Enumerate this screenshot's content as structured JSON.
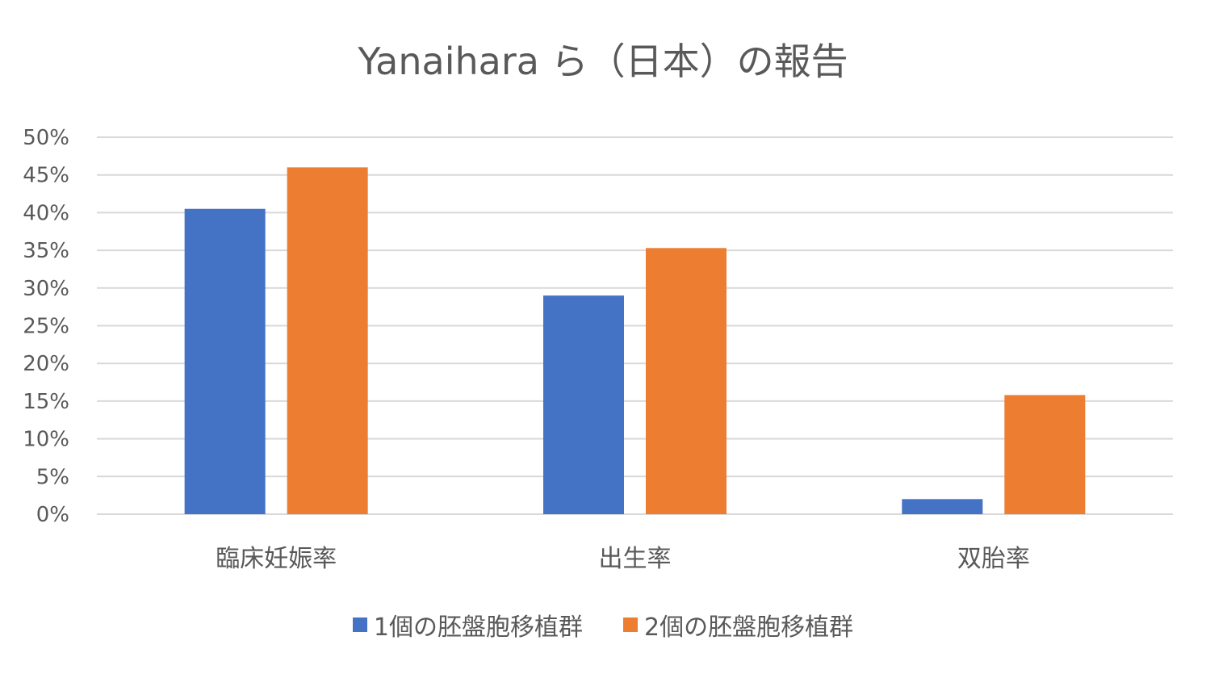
{
  "chart_data": {
    "type": "bar",
    "title": "Yanaihara ら（日本）の報告",
    "categories": [
      "臨床妊娠率",
      "出生率",
      "双胎率"
    ],
    "series": [
      {
        "name": "1個の胚盤胞移植群",
        "color": "#4472C4",
        "values": [
          40.5,
          29.0,
          2.0
        ]
      },
      {
        "name": "2個の胚盤胞移植群",
        "color": "#ED7D31",
        "values": [
          46.0,
          35.3,
          15.8
        ]
      }
    ],
    "ylim": [
      0,
      50
    ],
    "yticks": [
      0,
      5,
      10,
      15,
      20,
      25,
      30,
      35,
      40,
      45,
      50
    ],
    "ytick_labels": [
      "0%",
      "5%",
      "10%",
      "15%",
      "20%",
      "25%",
      "30%",
      "35%",
      "40%",
      "45%",
      "50%"
    ],
    "grid": true,
    "legend_position": "bottom",
    "gridline_color": "#D9D9D9"
  }
}
